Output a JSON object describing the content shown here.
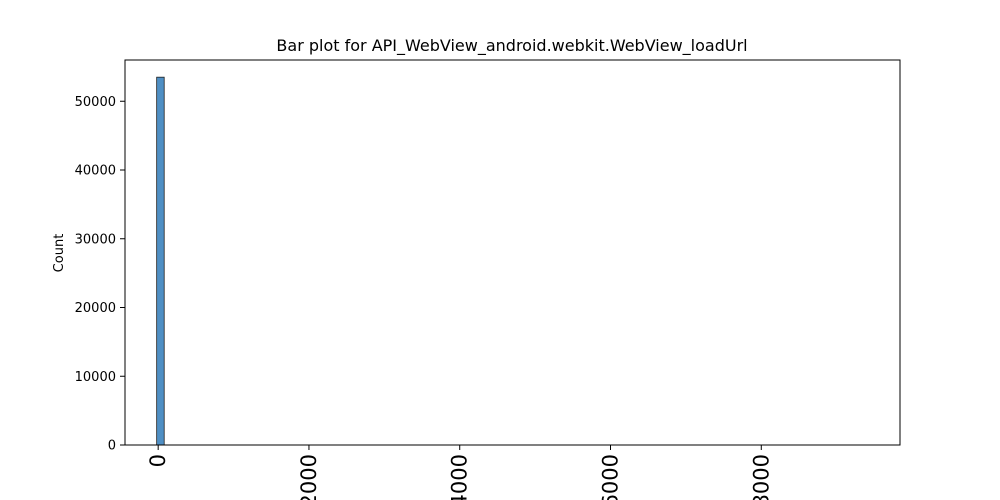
{
  "chart_data": {
    "type": "bar",
    "title": "Bar plot for API_WebView_android.webkit.WebView_loadUrl",
    "xlabel": "",
    "ylabel": "Count",
    "xlim": [
      -110,
      2460
    ],
    "ylim": [
      0,
      56000
    ],
    "x_ticks": [
      0,
      500,
      1000,
      1500,
      2000
    ],
    "x_tick_labels": [
      "0",
      "2000",
      "4000",
      "6000",
      "8000"
    ],
    "y_ticks": [
      0,
      10000,
      20000,
      30000,
      40000,
      50000
    ],
    "y_tick_labels": [
      "0",
      "10000",
      "20000",
      "30000",
      "40000",
      "50000"
    ],
    "bars": [
      {
        "x0": -5,
        "x1": 20,
        "value": 53500
      }
    ],
    "grid": false,
    "bar_color": "#4f8fc4",
    "bar_edge_color": "#1f1f1f"
  }
}
